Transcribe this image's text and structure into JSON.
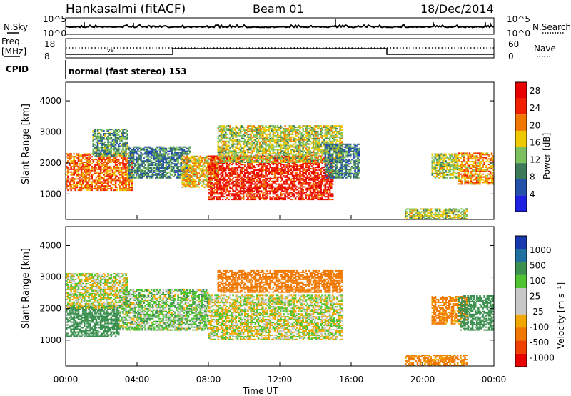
{
  "header": {
    "station": "Hankasalmi (fitACF)",
    "beam": "Beam 01",
    "date": "18/Dec/2014"
  },
  "panel_nsky": {
    "label_left": "N.Sky",
    "tick_top": "10^5",
    "tick_bottom": "10^0",
    "label_right": "N.Search",
    "rtick_top": "10^5",
    "rtick_bottom": "10^0"
  },
  "panel_freq": {
    "label": "Freq.",
    "unit": "[MHz]",
    "tick_top": "18",
    "tick_bottom": "8",
    "rtick_top": "60",
    "rtick_bottom": "0",
    "label_right": "Nave"
  },
  "cpid": {
    "label": "CPID",
    "text": "normal (fast stereo) 153"
  },
  "colors": {
    "power_scale": [
      "#1e22e0",
      "#2350a8",
      "#3c7a5a",
      "#7cc060",
      "#f0c800",
      "#f07800",
      "#f02000",
      "#e80000"
    ],
    "velocity_scale": [
      "#e80000",
      "#f04000",
      "#f07800",
      "#f0a800",
      "#c8c8c8",
      "#c8c8c8",
      "#4fc430",
      "#3c9050",
      "#2070a0",
      "#1838b0"
    ],
    "gray_ground": "#c3c3c3"
  },
  "chart_data": [
    {
      "type": "heatmap",
      "panel": "power",
      "ylabel": "Slant Range [km]",
      "xlabel": "Time UT",
      "x_ticks": [
        "00:00",
        "04:00",
        "08:00",
        "12:00",
        "16:00",
        "20:00",
        "00:00"
      ],
      "xlim_hours": [
        0,
        24
      ],
      "ylim_km": [
        180,
        4600
      ],
      "y_ticks": [
        1000,
        2000,
        3000,
        4000
      ],
      "colorbar": {
        "label": "Power [dB]",
        "ticks": [
          4,
          8,
          12,
          16,
          20,
          24,
          28
        ],
        "range": [
          0,
          30
        ]
      },
      "regions": [
        {
          "t0": 0.0,
          "t1": 3.7,
          "r0": 1100,
          "r1": 2300,
          "level": 22
        },
        {
          "t0": 1.5,
          "t1": 3.5,
          "r0": 2200,
          "r1": 3100,
          "level": 10
        },
        {
          "t0": 3.5,
          "t1": 7.0,
          "r0": 1500,
          "r1": 2500,
          "level": 8
        },
        {
          "t0": 6.5,
          "t1": 8.5,
          "r0": 1200,
          "r1": 2200,
          "level": 18
        },
        {
          "t0": 8.0,
          "t1": 15.0,
          "r0": 800,
          "r1": 2200,
          "level": 27
        },
        {
          "t0": 8.5,
          "t1": 15.5,
          "r0": 2000,
          "r1": 3200,
          "level": 15
        },
        {
          "t0": 14.5,
          "t1": 16.5,
          "r0": 1500,
          "r1": 2600,
          "level": 8
        },
        {
          "t0": 20.5,
          "t1": 22.0,
          "r0": 1500,
          "r1": 2300,
          "level": 14
        },
        {
          "t0": 22.0,
          "t1": 24.0,
          "r0": 1300,
          "r1": 2300,
          "level": 20
        },
        {
          "t0": 19.0,
          "t1": 22.5,
          "r0": 180,
          "r1": 500,
          "level": 14
        }
      ]
    },
    {
      "type": "heatmap",
      "panel": "velocity",
      "ylabel": "Slant Range [km]",
      "xlabel": "Time UT",
      "x_ticks": [
        "00:00",
        "04:00",
        "08:00",
        "12:00",
        "16:00",
        "20:00",
        "00:00"
      ],
      "xlim_hours": [
        0,
        24
      ],
      "ylim_km": [
        180,
        4600
      ],
      "y_ticks": [
        1000,
        2000,
        3000,
        4000
      ],
      "colorbar": {
        "label": "Velocity [m s⁻¹]",
        "ticks": [
          1000,
          500,
          100,
          25,
          -25,
          -100,
          -500,
          -1000
        ]
      },
      "regions": [
        {
          "t0": 0.0,
          "t1": 3.0,
          "r0": 1100,
          "r1": 2100,
          "v": 250
        },
        {
          "t0": 0.0,
          "t1": 3.5,
          "r0": 2000,
          "r1": 3100,
          "v": 0
        },
        {
          "t0": 3.0,
          "t1": 8.0,
          "r0": 1300,
          "r1": 2600,
          "v": 50
        },
        {
          "t0": 8.0,
          "t1": 15.5,
          "r0": 1000,
          "r1": 2400,
          "v": 0
        },
        {
          "t0": 8.5,
          "t1": 15.5,
          "r0": 2500,
          "r1": 3200,
          "v": -200
        },
        {
          "t0": 20.5,
          "t1": 22.5,
          "r0": 1500,
          "r1": 2400,
          "v": -150
        },
        {
          "t0": 22.0,
          "t1": 24.0,
          "r0": 1300,
          "r1": 2400,
          "v": 400
        },
        {
          "t0": 19.0,
          "t1": 22.5,
          "r0": 180,
          "r1": 500,
          "v": -150
        }
      ]
    }
  ],
  "xlabel_main": "Time UT"
}
